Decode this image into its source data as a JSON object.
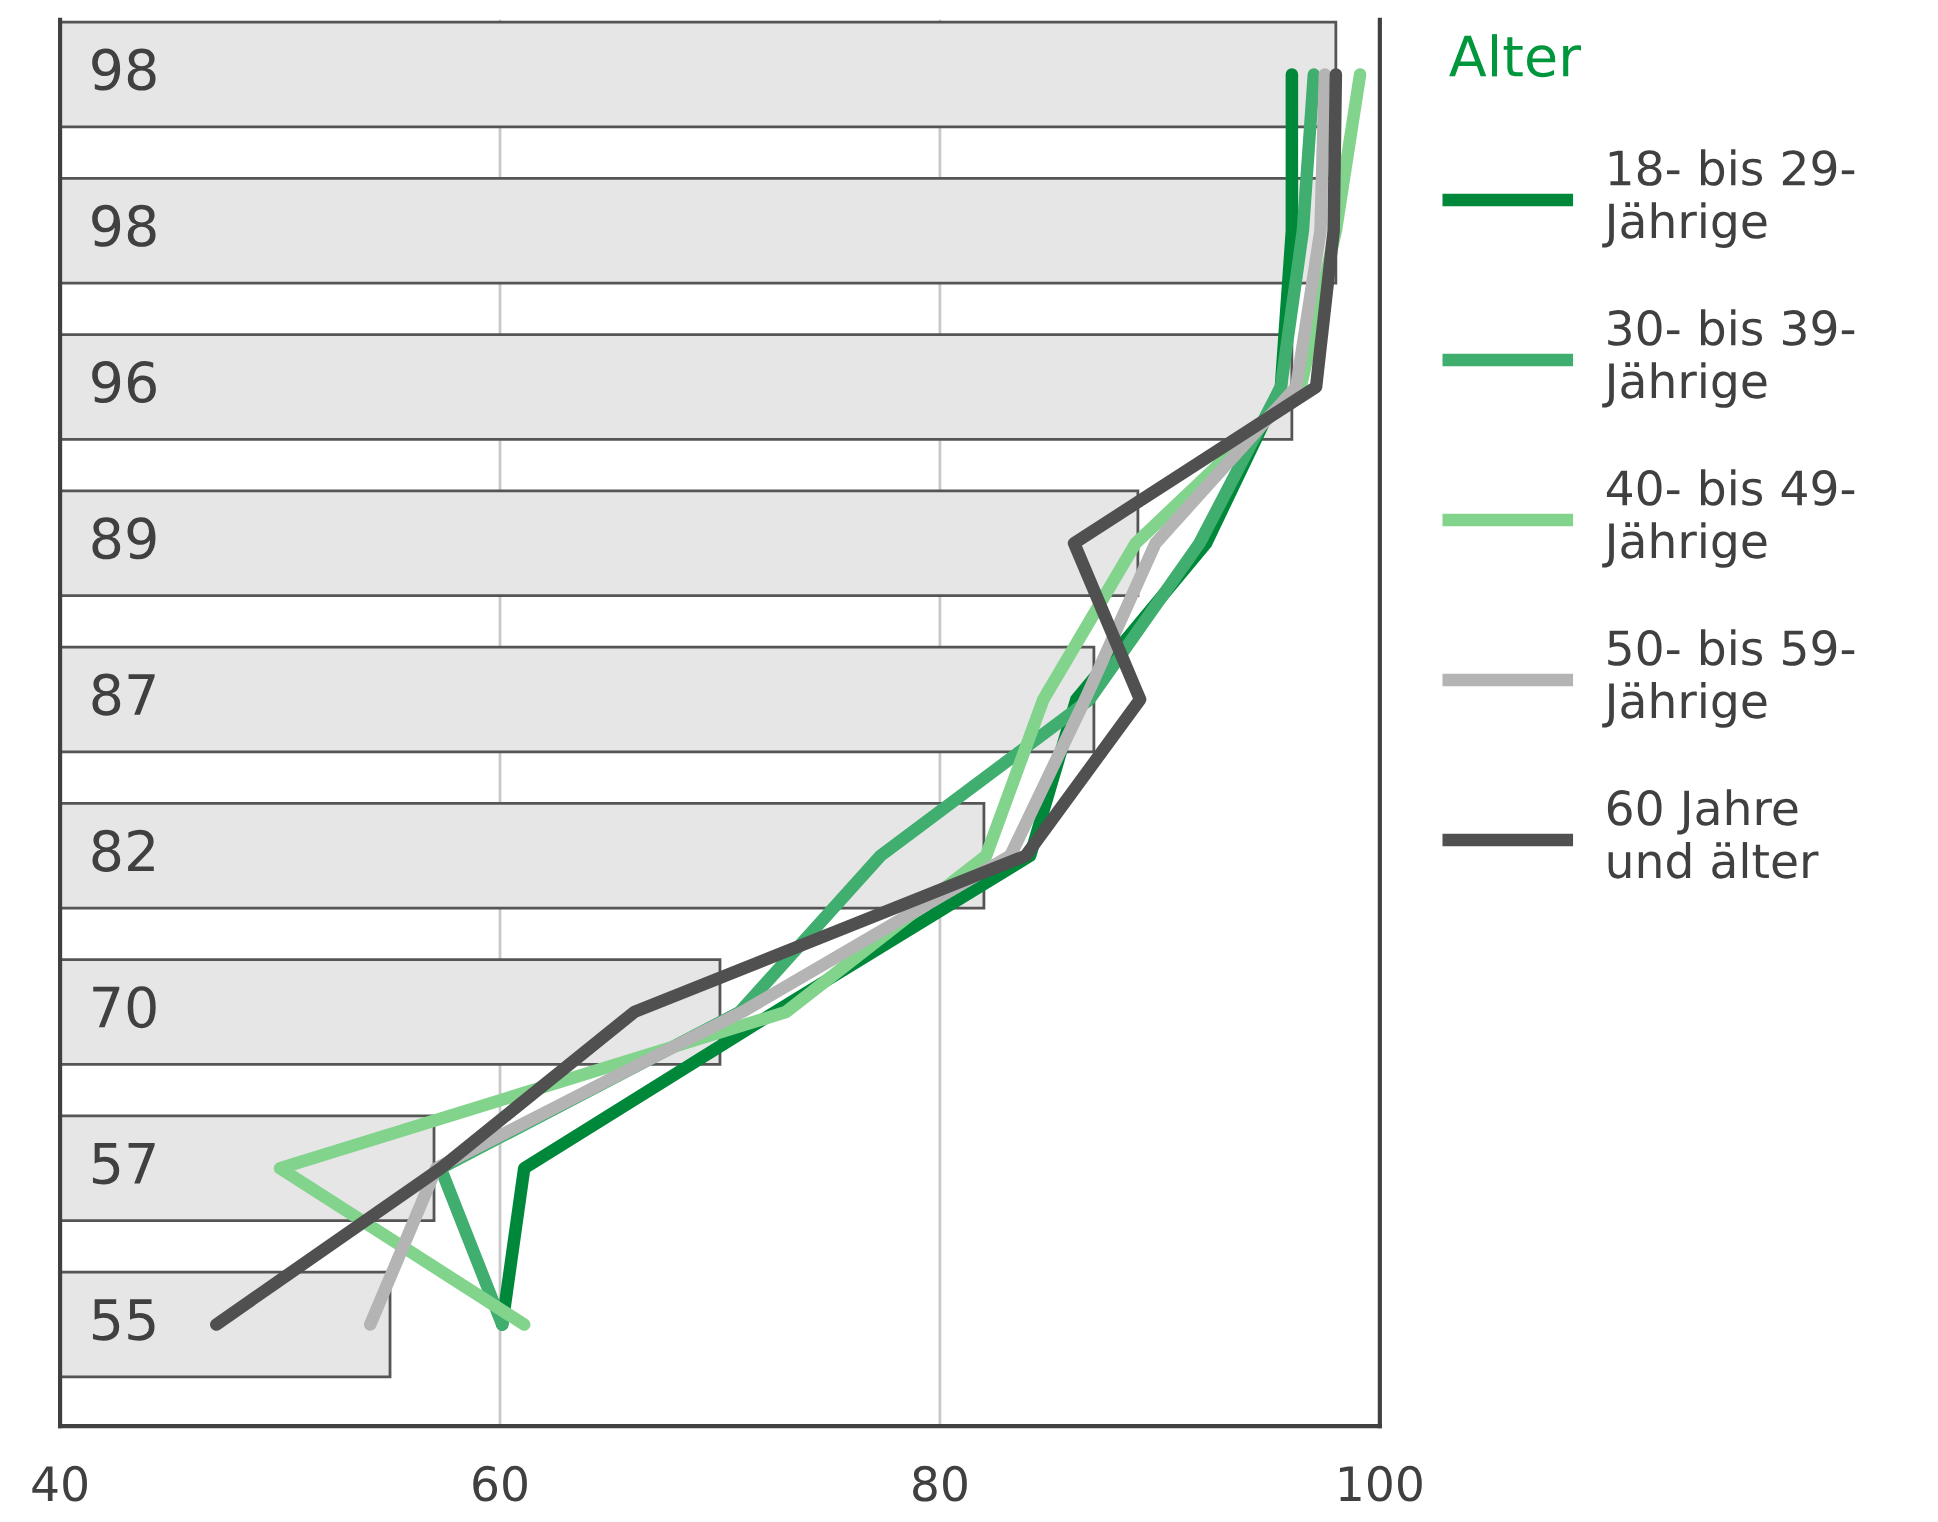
{
  "chart_data": {
    "type": "bar",
    "orientation": "horizontal",
    "categories": [
      null,
      null,
      null,
      null,
      null,
      null,
      null,
      null,
      null
    ],
    "values": [
      98,
      98,
      96,
      89,
      87,
      82,
      70,
      57,
      55
    ],
    "color": "#e6e6e6",
    "value_labels": [
      "98",
      "98",
      "96",
      "89",
      "87",
      "82",
      "70",
      "57",
      "55"
    ],
    "series": [
      {
        "name": "18- bis 29-\nJährige",
        "type": "line",
        "color": "#00883a",
        "values": [
          96,
          96,
          95.5,
          92.1,
          86.2,
          84.1,
          72.5,
          61.1,
          60.1
        ]
      },
      {
        "name": "30- bis 39-\nJährige",
        "type": "line",
        "color": "#3fae6e",
        "values": [
          97,
          96.5,
          95.5,
          91.8,
          86.8,
          77.3,
          70.9,
          57.3,
          60.1
        ]
      },
      {
        "name": "40- bis 49-\nJährige",
        "type": "line",
        "color": "#82d48c",
        "values": [
          99.1,
          98,
          96.4,
          88.9,
          84.7,
          82.1,
          73,
          50,
          61.1
        ]
      },
      {
        "name": "50- bis 59-\nJährige",
        "type": "line",
        "color": "#b4b4b4",
        "values": [
          97.5,
          97.3,
          96.2,
          89.8,
          86.6,
          83.2,
          71,
          57.1,
          54.1
        ]
      },
      {
        "name": "60 Jahre\nund älter",
        "type": "line",
        "color": "#505050",
        "values": [
          98,
          97.9,
          97.1,
          86.1,
          89.1,
          83.9,
          66.1,
          57.3,
          47.1
        ]
      }
    ],
    "legend_title": "Alter",
    "legend": "right",
    "xlim": [
      40,
      100
    ],
    "xticks": [
      40,
      60,
      80,
      100
    ],
    "grid": "x",
    "tick_labels": "x"
  }
}
